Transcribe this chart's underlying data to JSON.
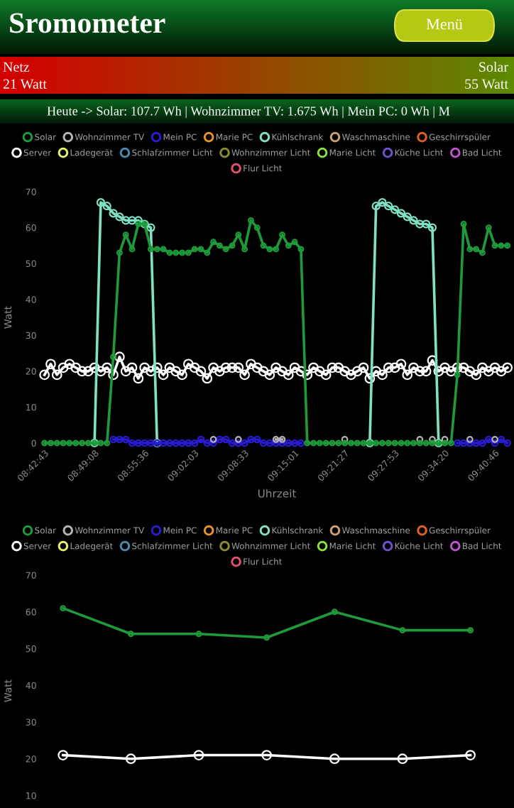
{
  "chart_data": [
    {
      "type": "line",
      "title": "Sromometer",
      "subtitle": "Heute -> Solar: 107.7 Wh | Wohnzimmer TV: 1.675 Wh | Mein PC: 0 Wh | M",
      "annotations": [
        "Menü",
        "Netz",
        "21 Watt",
        "Solar",
        "55 Watt"
      ],
      "xlabel": "Uhrzeit",
      "ylabel": "Watt",
      "ylim": [
        0,
        70
      ],
      "yticks": [
        0,
        10,
        20,
        30,
        40,
        50,
        60,
        70
      ],
      "grid": false,
      "legend": "top",
      "marker": "circle",
      "line_style": "solid",
      "categories": [
        "08:42:43",
        null,
        null,
        null,
        null,
        null,
        null,
        null,
        "08:49:08",
        null,
        null,
        null,
        null,
        null,
        null,
        null,
        "08:55:36",
        null,
        null,
        null,
        null,
        null,
        null,
        null,
        "09:02:03",
        null,
        null,
        null,
        null,
        null,
        null,
        null,
        "09:08:33",
        null,
        null,
        null,
        null,
        null,
        null,
        null,
        "09:15:01",
        null,
        null,
        null,
        null,
        null,
        null,
        null,
        "09:21:27",
        null,
        null,
        null,
        null,
        null,
        null,
        null,
        "09:27:53",
        null,
        null,
        null,
        null,
        null,
        null,
        null,
        "09:34:20",
        null,
        null,
        null,
        null,
        null,
        null,
        null,
        "09:40:46",
        null,
        null
      ],
      "series": [
        {
          "name": "Solar",
          "color": "#1e9a3a",
          "values": [
            0,
            0,
            0,
            0,
            0,
            0,
            0,
            0,
            0,
            0,
            0,
            24,
            53,
            58,
            54,
            61,
            61,
            54,
            54,
            54,
            53,
            53,
            53,
            53,
            54,
            54,
            53,
            56,
            55,
            54,
            55,
            58,
            54,
            62,
            60,
            55,
            54,
            54,
            58,
            55,
            56,
            54,
            0,
            0,
            0,
            0,
            0,
            0,
            0,
            0,
            0,
            0,
            0,
            0,
            0,
            0,
            0,
            0,
            0,
            0,
            0,
            0,
            0,
            0,
            0,
            0,
            19,
            61,
            54,
            54,
            53,
            60,
            55,
            55,
            55
          ]
        },
        {
          "name": "Wohnzimmer TV",
          "color": "#b4b4b4",
          "values": [
            null,
            null,
            null,
            null,
            null,
            null,
            null,
            null,
            null,
            null,
            null,
            null,
            null,
            null,
            null,
            null,
            null,
            null,
            null,
            null,
            null,
            null,
            null,
            null,
            null,
            null,
            null,
            1,
            null,
            null,
            null,
            1,
            null,
            null,
            null,
            null,
            null,
            1,
            1,
            null,
            null,
            null,
            null,
            null,
            null,
            null,
            null,
            null,
            1,
            null,
            null,
            null,
            null,
            null,
            null,
            null,
            null,
            null,
            null,
            null,
            1,
            null,
            1,
            null,
            1,
            null,
            null,
            null,
            1,
            null,
            null,
            null,
            1,
            null,
            null
          ]
        },
        {
          "name": "Mein PC",
          "color": "#2a1bd0",
          "values": [
            null,
            null,
            null,
            null,
            null,
            null,
            null,
            null,
            null,
            null,
            null,
            1,
            1,
            1,
            0,
            0,
            0,
            0,
            0,
            0,
            0,
            0,
            0,
            0,
            0,
            1,
            0,
            0,
            1,
            1,
            0,
            0,
            0,
            1,
            1,
            0,
            0,
            0,
            0,
            0,
            0,
            0,
            null,
            null,
            null,
            null,
            null,
            null,
            null,
            null,
            null,
            null,
            null,
            null,
            null,
            null,
            null,
            null,
            null,
            null,
            null,
            null,
            null,
            null,
            null,
            null,
            0,
            0,
            0,
            0,
            0,
            1,
            0,
            1,
            0
          ]
        },
        {
          "name": "Marie PC",
          "color": "#e8902a",
          "values": [
            null,
            null,
            null,
            null,
            null,
            null,
            null,
            null,
            null,
            null,
            null,
            null,
            null,
            null,
            null,
            null,
            null,
            null,
            null,
            null,
            null,
            null,
            null,
            null,
            null,
            null,
            null,
            null,
            null,
            null,
            null,
            null,
            null,
            null,
            null,
            null,
            null,
            null,
            null,
            null,
            null,
            null,
            null,
            null,
            null,
            null,
            null,
            null,
            null,
            null,
            null,
            null,
            null,
            null,
            null,
            null,
            null,
            null,
            null,
            null,
            null,
            null,
            null,
            null,
            null,
            null,
            null,
            null,
            null,
            null,
            null,
            null,
            null,
            null,
            null
          ]
        },
        {
          "name": "Kühlschrank",
          "color": "#80e0c4",
          "values": [
            null,
            null,
            null,
            null,
            null,
            null,
            null,
            null,
            0,
            67,
            66,
            64,
            63,
            62,
            62,
            62,
            61,
            60,
            0,
            null,
            null,
            null,
            null,
            null,
            null,
            null,
            null,
            null,
            null,
            null,
            null,
            null,
            null,
            null,
            null,
            null,
            null,
            null,
            null,
            null,
            null,
            null,
            null,
            null,
            null,
            null,
            null,
            null,
            null,
            null,
            null,
            null,
            0,
            66,
            67,
            66,
            65,
            64,
            63,
            62,
            61,
            61,
            60,
            0,
            null,
            null,
            null,
            null,
            null,
            null,
            null,
            null,
            null,
            null,
            null
          ]
        },
        {
          "name": "Waschmaschine",
          "color": "#c8a070",
          "values": [
            null,
            null,
            null,
            null,
            null,
            null,
            null,
            null,
            null,
            null,
            null,
            null,
            null,
            null,
            null,
            null,
            null,
            null,
            null,
            null,
            null,
            null,
            null,
            null,
            null,
            null,
            null,
            null,
            null,
            null,
            null,
            null,
            null,
            null,
            null,
            null,
            null,
            null,
            null,
            null,
            null,
            null,
            null,
            null,
            null,
            null,
            null,
            null,
            null,
            null,
            null,
            null,
            null,
            null,
            null,
            null,
            null,
            null,
            null,
            null,
            null,
            null,
            null,
            null,
            null,
            null,
            null,
            null,
            null,
            null,
            null,
            null,
            null,
            null,
            null
          ]
        },
        {
          "name": "Geschirrspüler",
          "color": "#e06020",
          "values": [
            null,
            null,
            null,
            null,
            null,
            null,
            null,
            null,
            null,
            null,
            null,
            null,
            null,
            null,
            null,
            null,
            null,
            null,
            null,
            null,
            null,
            null,
            null,
            null,
            null,
            null,
            null,
            null,
            null,
            null,
            null,
            null,
            null,
            null,
            null,
            null,
            null,
            null,
            null,
            null,
            null,
            null,
            null,
            null,
            null,
            null,
            null,
            null,
            null,
            null,
            null,
            null,
            null,
            null,
            null,
            null,
            null,
            null,
            null,
            null,
            null,
            null,
            null,
            null,
            null,
            null,
            null,
            null,
            null,
            null,
            null,
            null,
            null,
            null,
            null
          ]
        },
        {
          "name": "Server",
          "color": "#ffffff",
          "values": [
            19,
            22,
            19,
            21,
            22,
            21,
            20,
            20,
            21,
            20,
            21,
            19,
            24,
            20,
            21,
            18,
            21,
            20,
            21,
            19,
            21,
            20,
            19,
            22,
            21,
            20,
            18,
            21,
            20,
            21,
            21,
            21,
            19,
            22,
            21,
            20,
            19,
            21,
            20,
            19,
            21,
            20,
            19,
            21,
            20,
            19,
            21,
            21,
            20,
            19,
            20,
            21,
            18,
            20,
            19,
            21,
            21,
            22,
            19,
            21,
            20,
            20,
            23,
            20,
            21,
            20,
            21,
            21,
            20,
            19,
            21,
            20,
            21,
            20,
            21
          ]
        },
        {
          "name": "Ladegerät",
          "color": "#e8f070",
          "values": [
            null,
            null,
            null,
            null,
            null,
            null,
            null,
            null,
            null,
            null,
            null,
            null,
            null,
            null,
            null,
            null,
            null,
            null,
            null,
            null,
            null,
            null,
            null,
            null,
            null,
            null,
            null,
            null,
            null,
            null,
            null,
            null,
            null,
            null,
            null,
            null,
            null,
            null,
            null,
            null,
            null,
            null,
            null,
            null,
            null,
            null,
            null,
            null,
            null,
            null,
            null,
            null,
            null,
            null,
            null,
            null,
            null,
            null,
            null,
            null,
            null,
            null,
            null,
            null,
            null,
            null,
            null,
            null,
            null,
            null,
            null,
            null,
            null,
            null,
            null
          ]
        },
        {
          "name": "Schlafzimmer Licht",
          "color": "#4a8ab0",
          "values": [
            null,
            null,
            null,
            null,
            null,
            null,
            null,
            null,
            null,
            null,
            null,
            null,
            null,
            null,
            null,
            null,
            null,
            null,
            null,
            null,
            null,
            null,
            null,
            null,
            null,
            null,
            null,
            null,
            null,
            null,
            null,
            null,
            null,
            null,
            null,
            null,
            null,
            null,
            null,
            null,
            null,
            null,
            null,
            null,
            null,
            null,
            null,
            null,
            null,
            null,
            null,
            null,
            null,
            null,
            null,
            null,
            null,
            null,
            null,
            null,
            null,
            null,
            null,
            null,
            null,
            null,
            null,
            null,
            null,
            null,
            null,
            null,
            null,
            null,
            null
          ]
        },
        {
          "name": "Wohnzimmer Licht",
          "color": "#8a8a30",
          "values": [
            null,
            null,
            null,
            null,
            null,
            null,
            null,
            null,
            null,
            null,
            null,
            null,
            null,
            null,
            null,
            null,
            null,
            null,
            null,
            null,
            null,
            null,
            null,
            null,
            null,
            null,
            null,
            null,
            null,
            null,
            null,
            null,
            null,
            null,
            null,
            null,
            null,
            null,
            null,
            null,
            null,
            null,
            null,
            null,
            null,
            null,
            null,
            null,
            null,
            null,
            null,
            null,
            null,
            null,
            null,
            null,
            null,
            null,
            null,
            null,
            null,
            null,
            null,
            null,
            null,
            null,
            null,
            null,
            null,
            null,
            null,
            null,
            null,
            null,
            null
          ]
        },
        {
          "name": "Marie Licht",
          "color": "#8ae040",
          "values": [
            null,
            null,
            null,
            null,
            null,
            null,
            null,
            null,
            null,
            null,
            null,
            null,
            null,
            null,
            null,
            null,
            null,
            null,
            null,
            null,
            null,
            null,
            null,
            null,
            null,
            null,
            null,
            null,
            null,
            null,
            null,
            null,
            null,
            null,
            null,
            null,
            null,
            null,
            null,
            null,
            null,
            null,
            null,
            null,
            null,
            null,
            null,
            null,
            null,
            null,
            null,
            null,
            null,
            null,
            null,
            null,
            null,
            null,
            null,
            null,
            null,
            null,
            null,
            null,
            null,
            null,
            null,
            null,
            null,
            null,
            null,
            null,
            null,
            null,
            null
          ]
        },
        {
          "name": "Küche Licht",
          "color": "#7050d0",
          "values": [
            null,
            null,
            null,
            null,
            null,
            null,
            null,
            null,
            null,
            null,
            null,
            null,
            null,
            null,
            null,
            null,
            null,
            null,
            null,
            null,
            null,
            null,
            null,
            null,
            null,
            null,
            null,
            null,
            null,
            null,
            null,
            null,
            null,
            null,
            null,
            null,
            null,
            null,
            null,
            null,
            null,
            null,
            null,
            null,
            null,
            null,
            null,
            null,
            null,
            null,
            null,
            null,
            null,
            null,
            null,
            null,
            null,
            null,
            null,
            null,
            null,
            null,
            null,
            null,
            null,
            null,
            null,
            null,
            null,
            null,
            null,
            null,
            null,
            null,
            null
          ]
        },
        {
          "name": "Bad Licht",
          "color": "#c050d0",
          "values": [
            null,
            null,
            null,
            null,
            null,
            null,
            null,
            null,
            null,
            null,
            null,
            null,
            null,
            null,
            null,
            null,
            null,
            null,
            null,
            null,
            null,
            null,
            null,
            null,
            null,
            null,
            null,
            null,
            null,
            null,
            null,
            null,
            null,
            null,
            null,
            null,
            null,
            null,
            null,
            null,
            null,
            null,
            null,
            null,
            null,
            null,
            null,
            null,
            null,
            null,
            null,
            null,
            null,
            null,
            null,
            null,
            null,
            null,
            null,
            null,
            null,
            null,
            null,
            null,
            null,
            null,
            null,
            null,
            null,
            null,
            null,
            null,
            null,
            null,
            null
          ]
        },
        {
          "name": "Flur Licht",
          "color": "#e05070",
          "values": [
            null,
            null,
            null,
            null,
            null,
            null,
            null,
            null,
            null,
            null,
            null,
            null,
            null,
            null,
            null,
            null,
            null,
            null,
            null,
            null,
            null,
            null,
            null,
            null,
            null,
            null,
            null,
            null,
            null,
            null,
            null,
            null,
            null,
            null,
            null,
            null,
            null,
            null,
            null,
            null,
            null,
            null,
            null,
            null,
            null,
            null,
            null,
            null,
            null,
            null,
            null,
            null,
            null,
            null,
            null,
            null,
            null,
            null,
            null,
            null,
            null,
            null,
            null,
            null,
            null,
            null,
            null,
            null,
            null,
            null,
            null,
            null,
            null,
            null,
            null
          ]
        }
      ]
    },
    {
      "type": "line",
      "ylabel": "Watt",
      "ylim": [
        7,
        70
      ],
      "yticks": [
        10,
        20,
        30,
        40,
        50,
        60,
        70
      ],
      "grid": false,
      "legend": "top",
      "marker": "circle",
      "line_style": "solid",
      "tick_labels": "y",
      "categories": [
        null,
        null,
        null,
        null,
        null,
        null,
        null
      ],
      "series": [
        {
          "name": "Solar",
          "color": "#1e9a3a",
          "values": [
            61,
            54,
            54,
            53,
            60,
            55,
            55
          ]
        },
        {
          "name": "Wohnzimmer TV",
          "color": "#b4b4b4",
          "values": [
            null,
            null,
            null,
            null,
            null,
            null,
            null
          ]
        },
        {
          "name": "Mein PC",
          "color": "#2a1bd0",
          "values": [
            null,
            null,
            null,
            null,
            null,
            null,
            null
          ]
        },
        {
          "name": "Marie PC",
          "color": "#e8902a",
          "values": [
            null,
            null,
            null,
            null,
            null,
            null,
            null
          ]
        },
        {
          "name": "Kühlschrank",
          "color": "#80e0c4",
          "values": [
            null,
            null,
            null,
            null,
            null,
            null,
            null
          ]
        },
        {
          "name": "Waschmaschine",
          "color": "#c8a070",
          "values": [
            null,
            null,
            null,
            null,
            null,
            null,
            null
          ]
        },
        {
          "name": "Geschirrspüler",
          "color": "#e06020",
          "values": [
            null,
            null,
            null,
            null,
            null,
            null,
            null
          ]
        },
        {
          "name": "Server",
          "color": "#ffffff",
          "values": [
            21,
            20,
            21,
            21,
            20,
            20,
            21
          ]
        },
        {
          "name": "Ladegerät",
          "color": "#e8f070",
          "values": [
            null,
            null,
            null,
            null,
            null,
            null,
            null
          ]
        },
        {
          "name": "Schlafzimmer Licht",
          "color": "#4a8ab0",
          "values": [
            null,
            null,
            null,
            null,
            null,
            null,
            null
          ]
        },
        {
          "name": "Wohnzimmer Licht",
          "color": "#8a8a30",
          "values": [
            null,
            null,
            null,
            null,
            null,
            null,
            null
          ]
        },
        {
          "name": "Marie Licht",
          "color": "#8ae040",
          "values": [
            null,
            null,
            null,
            null,
            null,
            null,
            null
          ]
        },
        {
          "name": "Küche Licht",
          "color": "#7050d0",
          "values": [
            null,
            null,
            null,
            null,
            null,
            null,
            null
          ]
        },
        {
          "name": "Bad Licht",
          "color": "#c050d0",
          "values": [
            null,
            null,
            null,
            null,
            null,
            null,
            null
          ]
        },
        {
          "name": "Flur Licht",
          "color": "#e05070",
          "values": [
            null,
            null,
            null,
            null,
            null,
            null,
            null
          ]
        }
      ]
    }
  ]
}
